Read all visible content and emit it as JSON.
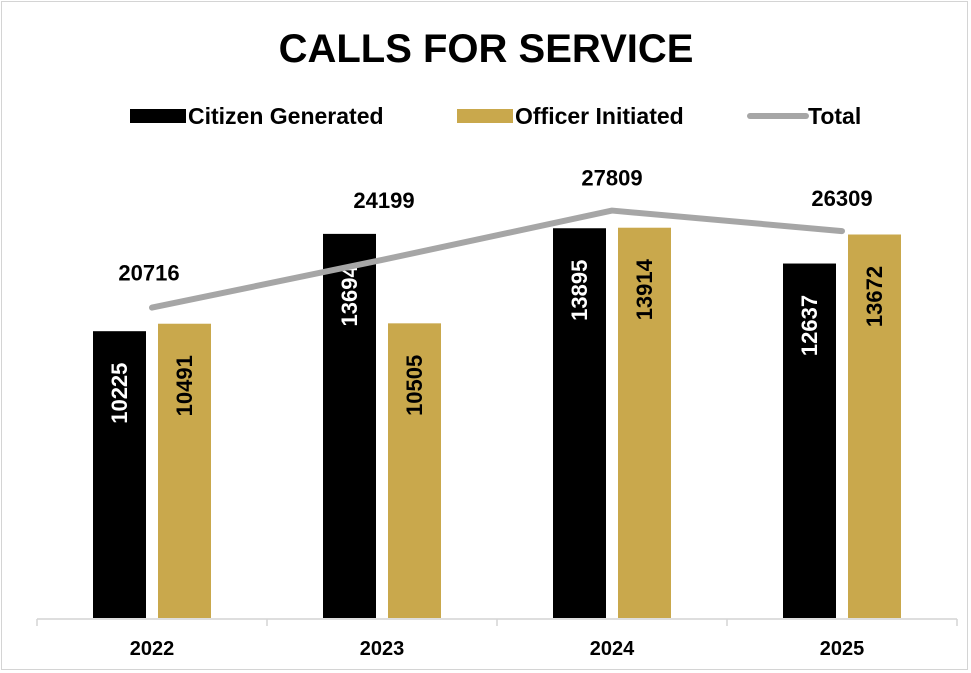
{
  "chart_data": {
    "type": "bar",
    "title": "CALLS FOR SERVICE",
    "categories": [
      "2022",
      "2023",
      "2024",
      "2025"
    ],
    "series": [
      {
        "name": "Citizen Generated",
        "type": "bar",
        "values": [
          10225,
          13694,
          13895,
          12637
        ],
        "color": "#000000",
        "label_color": "#ffffff"
      },
      {
        "name": "Officer Initiated",
        "type": "bar",
        "values": [
          10491,
          10505,
          13914,
          13672
        ],
        "color": "#c9a84c",
        "label_color": "#000000"
      },
      {
        "name": "Total",
        "type": "line",
        "values": [
          20716,
          24199,
          27809,
          26309
        ],
        "color": "#a6a6a6"
      }
    ],
    "xlabel": "",
    "ylabel": "",
    "legend_position": "top",
    "grid": false
  }
}
